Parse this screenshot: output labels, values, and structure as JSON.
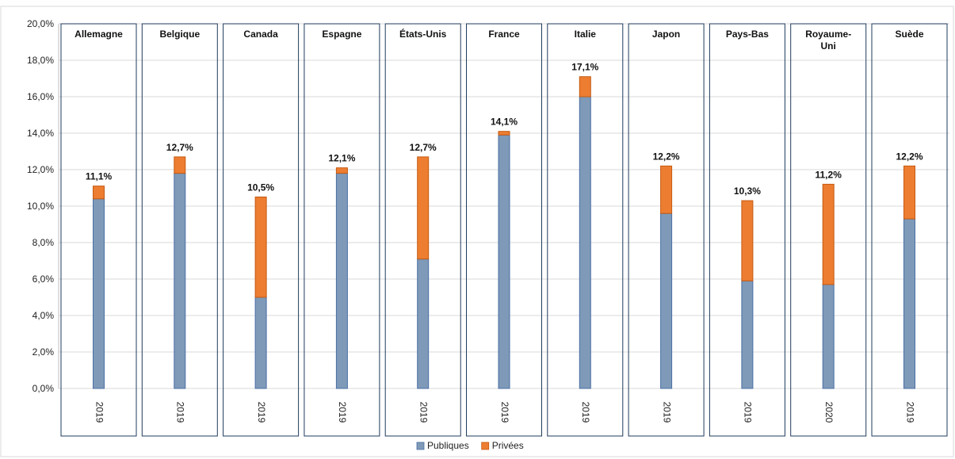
{
  "chart_data": {
    "type": "bar",
    "stacked": true,
    "y_ticks": [
      "0,0%",
      "2,0%",
      "4,0%",
      "6,0%",
      "8,0%",
      "10,0%",
      "12,0%",
      "14,0%",
      "16,0%",
      "18,0%",
      "20,0%"
    ],
    "ylim": [
      0,
      20
    ],
    "grid": true,
    "legend_position": "bottom",
    "categories": [
      {
        "country": "Allemagne",
        "title_lines": [
          "Allemagne"
        ],
        "year": "2019",
        "publiques": 10.4,
        "privees": 0.7,
        "total_label": "11,1%"
      },
      {
        "country": "Belgique",
        "title_lines": [
          "Belgique"
        ],
        "year": "2019",
        "publiques": 11.8,
        "privees": 0.9,
        "total_label": "12,7%"
      },
      {
        "country": "Canada",
        "title_lines": [
          "Canada"
        ],
        "year": "2019",
        "publiques": 5.0,
        "privees": 5.5,
        "total_label": "10,5%"
      },
      {
        "country": "Espagne",
        "title_lines": [
          "Espagne"
        ],
        "year": "2019",
        "publiques": 11.8,
        "privees": 0.3,
        "total_label": "12,1%"
      },
      {
        "country": "États-Unis",
        "title_lines": [
          "États-Unis"
        ],
        "year": "2019",
        "publiques": 7.1,
        "privees": 5.6,
        "total_label": "12,7%"
      },
      {
        "country": "France",
        "title_lines": [
          "France"
        ],
        "year": "2019",
        "publiques": 13.9,
        "privees": 0.2,
        "total_label": "14,1%"
      },
      {
        "country": "Italie",
        "title_lines": [
          "Italie"
        ],
        "year": "2019",
        "publiques": 16.0,
        "privees": 1.1,
        "total_label": "17,1%"
      },
      {
        "country": "Japon",
        "title_lines": [
          "Japon"
        ],
        "year": "2019",
        "publiques": 9.6,
        "privees": 2.6,
        "total_label": "12,2%"
      },
      {
        "country": "Pays-Bas",
        "title_lines": [
          "Pays-Bas"
        ],
        "year": "2019",
        "publiques": 5.9,
        "privees": 4.4,
        "total_label": "10,3%"
      },
      {
        "country": "Royaume-Uni",
        "title_lines": [
          "Royaume-",
          "Uni"
        ],
        "year": "2020",
        "publiques": 5.7,
        "privees": 5.5,
        "total_label": "11,2%"
      },
      {
        "country": "Suède",
        "title_lines": [
          "Suède"
        ],
        "year": "2019",
        "publiques": 9.3,
        "privees": 2.9,
        "total_label": "12,2%"
      }
    ],
    "series": [
      {
        "key": "publiques",
        "name": "Publiques",
        "color": "#7f9ab8",
        "stroke": "#4a6fa5"
      },
      {
        "key": "privees",
        "name": "Privées",
        "color": "#ed7d31",
        "stroke": "#c55a11"
      }
    ]
  }
}
